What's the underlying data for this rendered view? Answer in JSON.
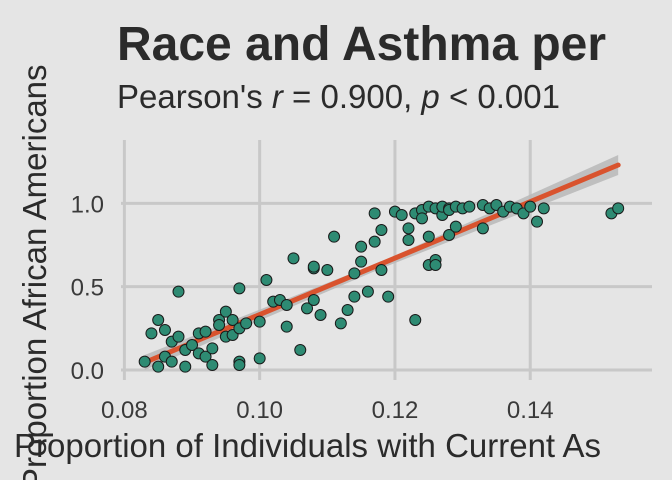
{
  "chart_data": {
    "type": "scatter",
    "title": "Race and Asthma per",
    "subtitle": {
      "prefix": "Pearson's ",
      "r_symbol": "r",
      "r_text": " = 0.900, ",
      "p_symbol": "p",
      "p_text": " < 0.001"
    },
    "xlabel": "Proportion of Individuals with Current As",
    "ylabel": "Proportion African Americans",
    "xlim": [
      0.0795,
      0.158
    ],
    "ylim": [
      -0.06,
      1.38
    ],
    "xticks": [
      "0.08",
      "0.10",
      "0.12",
      "0.14"
    ],
    "xtick_values": [
      0.08,
      0.1,
      0.12,
      0.14
    ],
    "yticks": [
      "0.0",
      "0.5",
      "1.0"
    ],
    "ytick_values": [
      0.0,
      0.5,
      1.0
    ],
    "grid": true,
    "point_color": "#2e8b73",
    "trend_color": "#d9532e",
    "band_color": "#b8b8b8",
    "trend": {
      "x": [
        0.083,
        0.153
      ],
      "y": [
        0.045,
        1.23
      ]
    },
    "band": {
      "x": [
        0.083,
        0.118,
        0.153
      ],
      "lower": [
        0.0,
        0.61,
        1.17
      ],
      "upper": [
        0.09,
        0.65,
        1.29
      ]
    },
    "points": [
      [
        0.083,
        0.05
      ],
      [
        0.084,
        0.22
      ],
      [
        0.085,
        0.3
      ],
      [
        0.085,
        0.02
      ],
      [
        0.086,
        0.08
      ],
      [
        0.086,
        0.24
      ],
      [
        0.087,
        0.17
      ],
      [
        0.087,
        0.05
      ],
      [
        0.088,
        0.2
      ],
      [
        0.088,
        0.47
      ],
      [
        0.089,
        0.12
      ],
      [
        0.089,
        0.02
      ],
      [
        0.09,
        0.15
      ],
      [
        0.091,
        0.1
      ],
      [
        0.091,
        0.22
      ],
      [
        0.092,
        0.08
      ],
      [
        0.092,
        0.23
      ],
      [
        0.093,
        0.13
      ],
      [
        0.093,
        0.03
      ],
      [
        0.094,
        0.3
      ],
      [
        0.094,
        0.27
      ],
      [
        0.095,
        0.2
      ],
      [
        0.095,
        0.35
      ],
      [
        0.096,
        0.21
      ],
      [
        0.096,
        0.3
      ],
      [
        0.097,
        0.25
      ],
      [
        0.097,
        0.05
      ],
      [
        0.097,
        0.03
      ],
      [
        0.097,
        0.49
      ],
      [
        0.098,
        0.28
      ],
      [
        0.1,
        0.07
      ],
      [
        0.1,
        0.29
      ],
      [
        0.101,
        0.54
      ],
      [
        0.102,
        0.41
      ],
      [
        0.103,
        0.42
      ],
      [
        0.104,
        0.39
      ],
      [
        0.104,
        0.26
      ],
      [
        0.105,
        0.67
      ],
      [
        0.106,
        0.12
      ],
      [
        0.107,
        0.37
      ],
      [
        0.108,
        0.61
      ],
      [
        0.108,
        0.62
      ],
      [
        0.108,
        0.42
      ],
      [
        0.109,
        0.33
      ],
      [
        0.11,
        0.6
      ],
      [
        0.111,
        0.8
      ],
      [
        0.112,
        0.28
      ],
      [
        0.113,
        0.36
      ],
      [
        0.114,
        0.44
      ],
      [
        0.114,
        0.58
      ],
      [
        0.115,
        0.65
      ],
      [
        0.115,
        0.74
      ],
      [
        0.116,
        0.47
      ],
      [
        0.117,
        0.77
      ],
      [
        0.117,
        0.94
      ],
      [
        0.118,
        0.84
      ],
      [
        0.118,
        0.6
      ],
      [
        0.119,
        0.44
      ],
      [
        0.12,
        0.95
      ],
      [
        0.121,
        0.93
      ],
      [
        0.122,
        0.85
      ],
      [
        0.122,
        0.78
      ],
      [
        0.123,
        0.3
      ],
      [
        0.123,
        0.94
      ],
      [
        0.124,
        0.96
      ],
      [
        0.124,
        0.91
      ],
      [
        0.125,
        0.98
      ],
      [
        0.125,
        0.8
      ],
      [
        0.125,
        0.63
      ],
      [
        0.126,
        0.97
      ],
      [
        0.126,
        0.66
      ],
      [
        0.126,
        0.63
      ],
      [
        0.127,
        0.93
      ],
      [
        0.127,
        0.98
      ],
      [
        0.128,
        0.97
      ],
      [
        0.128,
        0.81
      ],
      [
        0.128,
        0.96
      ],
      [
        0.129,
        0.86
      ],
      [
        0.129,
        0.98
      ],
      [
        0.13,
        0.97
      ],
      [
        0.131,
        0.98
      ],
      [
        0.133,
        0.99
      ],
      [
        0.133,
        0.85
      ],
      [
        0.134,
        0.97
      ],
      [
        0.135,
        0.99
      ],
      [
        0.136,
        0.95
      ],
      [
        0.137,
        0.98
      ],
      [
        0.138,
        0.97
      ],
      [
        0.139,
        0.94
      ],
      [
        0.14,
        0.98
      ],
      [
        0.141,
        0.89
      ],
      [
        0.142,
        0.97
      ],
      [
        0.152,
        0.94
      ],
      [
        0.153,
        0.97
      ]
    ]
  }
}
